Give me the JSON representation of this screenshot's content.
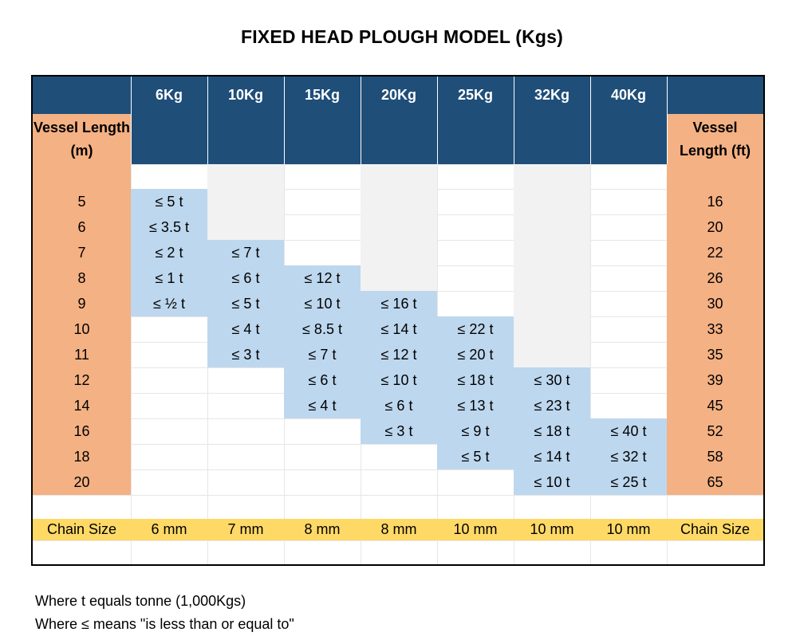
{
  "title": "FIXED HEAD PLOUGH MODEL (Kgs)",
  "models": [
    "6Kg",
    "10Kg",
    "15Kg",
    "20Kg",
    "25Kg",
    "32Kg",
    "40Kg"
  ],
  "left_header": "Vessel Length (m)",
  "right_header": "Vessel Length (ft)",
  "rows": [
    {
      "m": "5",
      "ft": "16",
      "cells": [
        "≤ 5 t",
        "",
        "",
        "",
        "",
        "",
        ""
      ]
    },
    {
      "m": "6",
      "ft": "20",
      "cells": [
        "≤ 3.5 t",
        "",
        "",
        "",
        "",
        "",
        ""
      ]
    },
    {
      "m": "7",
      "ft": "22",
      "cells": [
        "≤ 2 t",
        "≤ 7 t",
        "",
        "",
        "",
        "",
        ""
      ]
    },
    {
      "m": "8",
      "ft": "26",
      "cells": [
        "≤ 1 t",
        "≤ 6 t",
        "≤ 12 t",
        "",
        "",
        "",
        ""
      ]
    },
    {
      "m": "9",
      "ft": "30",
      "cells": [
        "≤ ½ t",
        "≤ 5 t",
        "≤ 10 t",
        "≤ 16 t",
        "",
        "",
        ""
      ]
    },
    {
      "m": "10",
      "ft": "33",
      "cells": [
        "",
        "≤ 4 t",
        "≤ 8.5 t",
        "≤ 14 t",
        "≤ 22 t",
        "",
        ""
      ]
    },
    {
      "m": "11",
      "ft": "35",
      "cells": [
        "",
        "≤ 3 t",
        "≤ 7 t",
        "≤ 12 t",
        "≤ 20 t",
        "",
        ""
      ]
    },
    {
      "m": "12",
      "ft": "39",
      "cells": [
        "",
        "",
        "≤ 6 t",
        "≤ 10 t",
        "≤ 18 t",
        "≤ 30 t",
        ""
      ]
    },
    {
      "m": "14",
      "ft": "45",
      "cells": [
        "",
        "",
        "≤ 4 t",
        "≤ 6 t",
        "≤ 13 t",
        "≤ 23 t",
        ""
      ]
    },
    {
      "m": "16",
      "ft": "52",
      "cells": [
        "",
        "",
        "",
        "≤ 3 t",
        "≤ 9 t",
        "≤ 18 t",
        "≤ 40 t"
      ]
    },
    {
      "m": "18",
      "ft": "58",
      "cells": [
        "",
        "",
        "",
        "",
        "≤ 5 t",
        "≤ 14 t",
        "≤ 32 t"
      ]
    },
    {
      "m": "20",
      "ft": "65",
      "cells": [
        "",
        "",
        "",
        "",
        "",
        "≤ 10 t",
        "≤ 25 t"
      ]
    }
  ],
  "chain_label": "Chain Size",
  "chain_sizes": [
    "6 mm",
    "7 mm",
    "8 mm",
    "8 mm",
    "10 mm",
    "10 mm",
    "10 mm"
  ],
  "notes": [
    "Where t equals tonne (1,000Kgs)",
    "Where ≤ means \"is less than or equal to\""
  ],
  "colors": {
    "header": "#1f4e79",
    "vessel_length": "#f4b183",
    "value": "#bdd7ee",
    "shaded": "#f2f2f2",
    "chain": "#ffd966"
  }
}
